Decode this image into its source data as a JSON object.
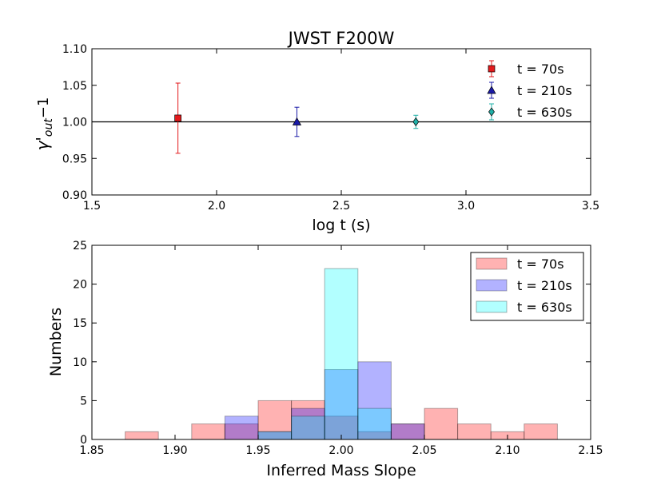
{
  "chart_data": [
    {
      "type": "scatter",
      "title": "JWST F200W",
      "xlabel": "log t (s)",
      "ylabel_main": "γ'",
      "ylabel_sub": "out",
      "ylabel_tail": "−1",
      "xlim": [
        1.5,
        3.5
      ],
      "ylim": [
        0.9,
        1.1
      ],
      "xticks": [
        "1.5",
        "2.0",
        "2.5",
        "3.0",
        "3.5"
      ],
      "yticks": [
        "0.90",
        "0.95",
        "1.00",
        "1.05",
        "1.10"
      ],
      "reference_line_y": 1.0,
      "legend_position": "top-right",
      "series": [
        {
          "name": "t = 70s",
          "x": 1.845,
          "y": 1.005,
          "err_low": 0.048,
          "err_high": 0.048,
          "color": "#e31a1c",
          "marker": "square"
        },
        {
          "name": "t = 210s",
          "x": 2.322,
          "y": 1.0,
          "err_low": 0.02,
          "err_high": 0.02,
          "color": "#1a1aa8",
          "marker": "triangle"
        },
        {
          "name": "t = 630s",
          "x": 2.799,
          "y": 1.0,
          "err_low": 0.009,
          "err_high": 0.009,
          "color": "#20b0a8",
          "marker": "diamond"
        }
      ]
    },
    {
      "type": "bar",
      "subtype": "histogram",
      "xlabel": "Inferred Mass Slope",
      "ylabel": "Numbers",
      "xlim": [
        1.85,
        2.15
      ],
      "ylim": [
        0,
        25
      ],
      "xticks": [
        "1.85",
        "1.90",
        "1.95",
        "2.00",
        "2.05",
        "2.10",
        "2.15"
      ],
      "yticks": [
        "0",
        "5",
        "10",
        "15",
        "20",
        "25"
      ],
      "bin_edges": [
        1.85,
        1.87,
        1.89,
        1.91,
        1.93,
        1.95,
        1.97,
        1.99,
        2.01,
        2.03,
        2.05,
        2.07,
        2.09,
        2.11,
        2.13,
        2.15
      ],
      "legend_position": "top-right",
      "series": [
        {
          "name": "t = 70s",
          "color": "#ff0000",
          "counts": [
            0,
            1,
            0,
            2,
            2,
            5,
            5,
            3,
            1,
            2,
            4,
            2,
            1,
            2,
            0
          ]
        },
        {
          "name": "t = 210s",
          "color": "#0000ff",
          "counts": [
            0,
            0,
            0,
            0,
            3,
            1,
            4,
            9,
            10,
            2,
            0,
            0,
            0,
            0,
            0
          ]
        },
        {
          "name": "t = 630s",
          "color": "#00ffff",
          "counts": [
            0,
            0,
            0,
            0,
            0,
            1,
            3,
            22,
            4,
            0,
            0,
            0,
            0,
            0,
            0
          ]
        }
      ]
    }
  ]
}
